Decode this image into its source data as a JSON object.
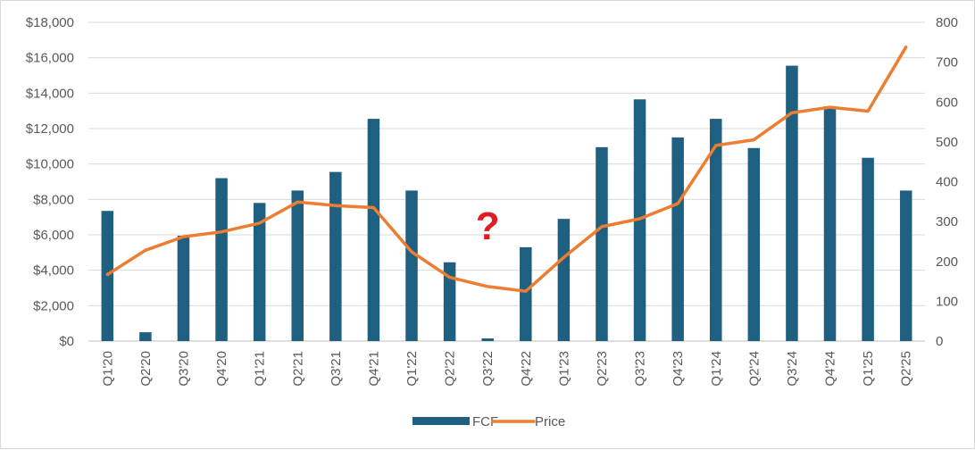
{
  "chart_data": {
    "type": "bar",
    "categories": [
      "Q1'20",
      "Q2'20",
      "Q3'20",
      "Q4'20",
      "Q1'21",
      "Q2'21",
      "Q3'21",
      "Q4'21",
      "Q1'22",
      "Q2'22",
      "Q3'22",
      "Q4'22",
      "Q1'23",
      "Q2'23",
      "Q3'23",
      "Q4'23",
      "Q1'24",
      "Q2'24",
      "Q3'24",
      "Q4'24",
      "Q1'25",
      "Q2'25"
    ],
    "series": [
      {
        "name": "FCF",
        "type": "bar",
        "axis": "left",
        "color": "#1f5f7f",
        "values": [
          7350,
          500,
          5950,
          9200,
          7800,
          8500,
          9550,
          12550,
          8500,
          4450,
          150,
          5300,
          6900,
          10950,
          13650,
          11500,
          12550,
          10900,
          15550,
          13250,
          10350,
          8500
        ]
      },
      {
        "name": "Price",
        "type": "line",
        "axis": "right",
        "color": "#ed7d31",
        "values": [
          167,
          228,
          262,
          274,
          296,
          349,
          340,
          335,
          224,
          160,
          137,
          125,
          210,
          287,
          307,
          345,
          491,
          505,
          573,
          587,
          577,
          738
        ]
      }
    ],
    "y_left": {
      "ylim": [
        0,
        18000
      ],
      "ticks": [
        "$0",
        "$2,000",
        "$4,000",
        "$6,000",
        "$8,000",
        "$10,000",
        "$12,000",
        "$14,000",
        "$16,000",
        "$18,000"
      ]
    },
    "y_right": {
      "ylim": [
        0,
        800
      ],
      "ticks": [
        "0",
        "100",
        "200",
        "300",
        "400",
        "500",
        "600",
        "700",
        "800"
      ]
    },
    "grid": true,
    "legend_position": "bottom",
    "annotations": [
      {
        "text": "?",
        "category": "Q3'22",
        "value_right": 255,
        "color": "#e11b22"
      }
    ]
  }
}
